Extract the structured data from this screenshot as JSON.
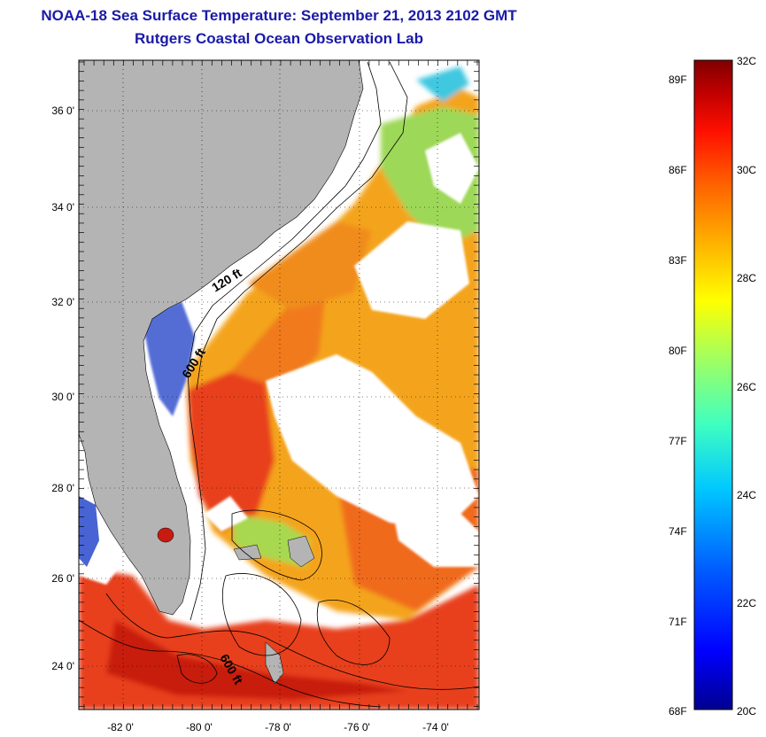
{
  "header": {
    "title": "NOAA-18 Sea Surface Temperature:  September 21, 2013 2102 GMT",
    "subtitle": "Rutgers Coastal Ocean Observation Lab"
  },
  "map": {
    "lat_labels": [
      "36 0'",
      "34 0'",
      "32 0'",
      "30 0'",
      "28 0'",
      "26 0'",
      "24 0'"
    ],
    "lon_labels": [
      "-82 0'",
      "-80 0'",
      "-78 0'",
      "-76 0'",
      "-74 0'"
    ],
    "contour_labels": [
      "120 ft",
      "600 ft",
      "600 ft"
    ],
    "colors": {
      "land": "#b4b4b4",
      "cloud": "#ffffff",
      "warm": "#e8401c",
      "hot": "#c81a10",
      "mid": "#f2a414",
      "cool": "#9ed858",
      "cold": "#1a3cc8"
    }
  },
  "colorbar": {
    "fahrenheit_labels": [
      "89F",
      "86F",
      "83F",
      "80F",
      "77F",
      "74F",
      "71F",
      "68F"
    ],
    "celsius_labels": [
      "32C",
      "30C",
      "28C",
      "26C",
      "24C",
      "22C",
      "20C"
    ],
    "range_c": [
      20,
      32
    ],
    "colors": [
      "#00008f",
      "#0000ff",
      "#0060ff",
      "#00c8ff",
      "#40ffc0",
      "#a0ff60",
      "#ffff00",
      "#ffb000",
      "#ff6000",
      "#ff1000",
      "#c00000",
      "#800000"
    ]
  }
}
